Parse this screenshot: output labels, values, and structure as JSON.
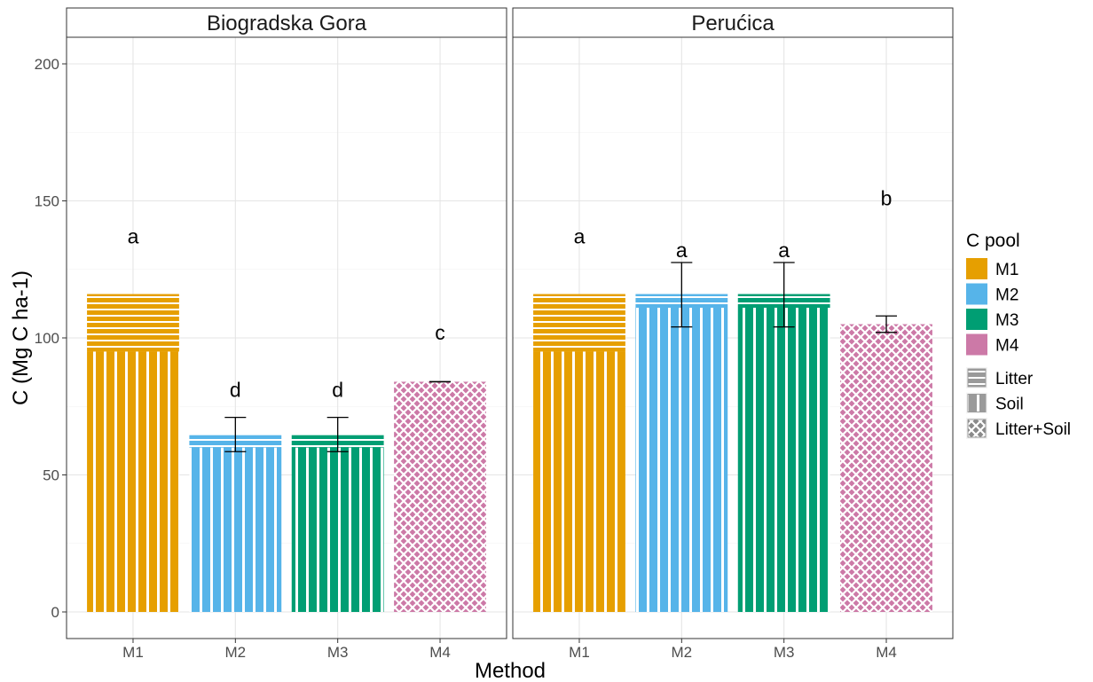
{
  "chart_data": {
    "type": "bar",
    "stacked": true,
    "xlabel": "Method",
    "ylabel": "C (Mg C ha-1)",
    "ylim": [
      0,
      200
    ],
    "y_ticks": [
      0,
      50,
      100,
      150,
      200
    ],
    "categories": [
      "M1",
      "M2",
      "M3",
      "M4"
    ],
    "grid": true,
    "legend_placement": "right",
    "colors": {
      "M1": "#E69F00",
      "M2": "#56B4E9",
      "M3": "#009E73",
      "M4": "#CC79A7"
    },
    "fill_legend": {
      "title": "C pool",
      "entries": [
        "M1",
        "M2",
        "M3",
        "M4"
      ]
    },
    "pattern_legend": {
      "entries": [
        {
          "label": "Litter",
          "pattern": "stripe-horizontal"
        },
        {
          "label": "Soil",
          "pattern": "stripe-vertical"
        },
        {
          "label": "Litter+Soil",
          "pattern": "crosshatch"
        }
      ]
    },
    "panels": [
      {
        "title": "Biogradska Gora",
        "bars": [
          {
            "method": "M1",
            "soil": 95,
            "litter": 21,
            "combined": null,
            "err_low": null,
            "err_high": null,
            "label": "a",
            "label_y": 137
          },
          {
            "method": "M2",
            "soil": 60,
            "litter": 4.5,
            "combined": null,
            "err_low": 58.5,
            "err_high": 71,
            "label": "d",
            "label_y": 81
          },
          {
            "method": "M3",
            "soil": 60,
            "litter": 4.5,
            "combined": null,
            "err_low": 58.5,
            "err_high": 71,
            "label": "d",
            "label_y": 81
          },
          {
            "method": "M4",
            "soil": null,
            "litter": null,
            "combined": 84,
            "err_low": 84,
            "err_high": 84,
            "label": "c",
            "label_y": 102
          }
        ]
      },
      {
        "title": "Perućica",
        "bars": [
          {
            "method": "M1",
            "soil": 95,
            "litter": 21,
            "combined": null,
            "err_low": null,
            "err_high": null,
            "label": "a",
            "label_y": 137
          },
          {
            "method": "M2",
            "soil": 111,
            "litter": 5,
            "combined": null,
            "err_low": 104,
            "err_high": 127.5,
            "label": "a",
            "label_y": 132
          },
          {
            "method": "M3",
            "soil": 111,
            "litter": 5,
            "combined": null,
            "err_low": 104,
            "err_high": 127.5,
            "label": "a",
            "label_y": 132
          },
          {
            "method": "M4",
            "soil": null,
            "litter": null,
            "combined": 105,
            "err_low": 102,
            "err_high": 108,
            "label": "b",
            "label_y": 151
          }
        ]
      }
    ]
  }
}
